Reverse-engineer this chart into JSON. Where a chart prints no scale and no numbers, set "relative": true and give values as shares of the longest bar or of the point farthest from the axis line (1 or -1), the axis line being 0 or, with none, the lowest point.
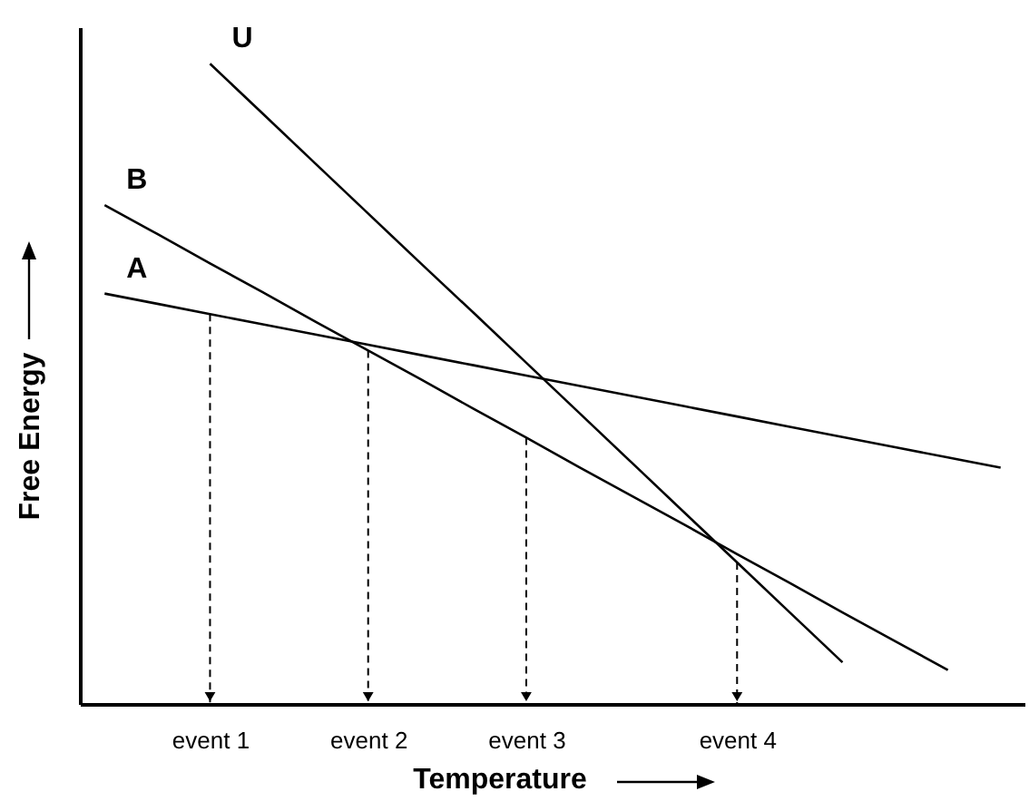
{
  "chart_data": {
    "type": "line",
    "relative": true,
    "xlabel": "Temperature",
    "ylabel": "Free Energy",
    "categories": [
      null,
      null,
      "event 1",
      null,
      null,
      "event 2",
      null,
      null,
      "event 3",
      null,
      null,
      null,
      "event 4",
      null,
      null,
      null,
      null,
      null
    ],
    "series": [
      {
        "name": "A",
        "color": "#000000",
        "values": [
          0.641,
          0.625,
          0.609,
          0.593,
          0.577,
          0.561,
          0.545,
          0.529,
          0.513,
          0.497,
          0.481,
          0.465,
          0.449,
          0.433,
          0.417,
          0.401,
          0.385,
          0.369
        ]
      },
      {
        "name": "B",
        "color": "#000000",
        "values": [
          0.779,
          0.734,
          0.688,
          0.643,
          0.597,
          0.552,
          0.507,
          0.461,
          0.416,
          0.37,
          0.325,
          0.28,
          0.234,
          0.189,
          0.143,
          0.098,
          0.053,
          null
        ]
      },
      {
        "name": "U",
        "color": "#000000",
        "values": [
          null,
          null,
          1,
          0.922,
          0.844,
          0.766,
          0.688,
          0.611,
          0.533,
          0.455,
          0.377,
          0.299,
          0.221,
          0.143,
          0.065,
          null,
          null,
          null
        ]
      }
    ],
    "ref_lines": [
      {
        "axis": "x",
        "value": "event 1",
        "line_style": "dashed"
      },
      {
        "axis": "x",
        "value": "event 2",
        "line_style": "dashed"
      },
      {
        "axis": "x",
        "value": "event 3",
        "line_style": "dashed"
      },
      {
        "axis": "x",
        "value": "event 4",
        "line_style": "dashed"
      }
    ]
  }
}
